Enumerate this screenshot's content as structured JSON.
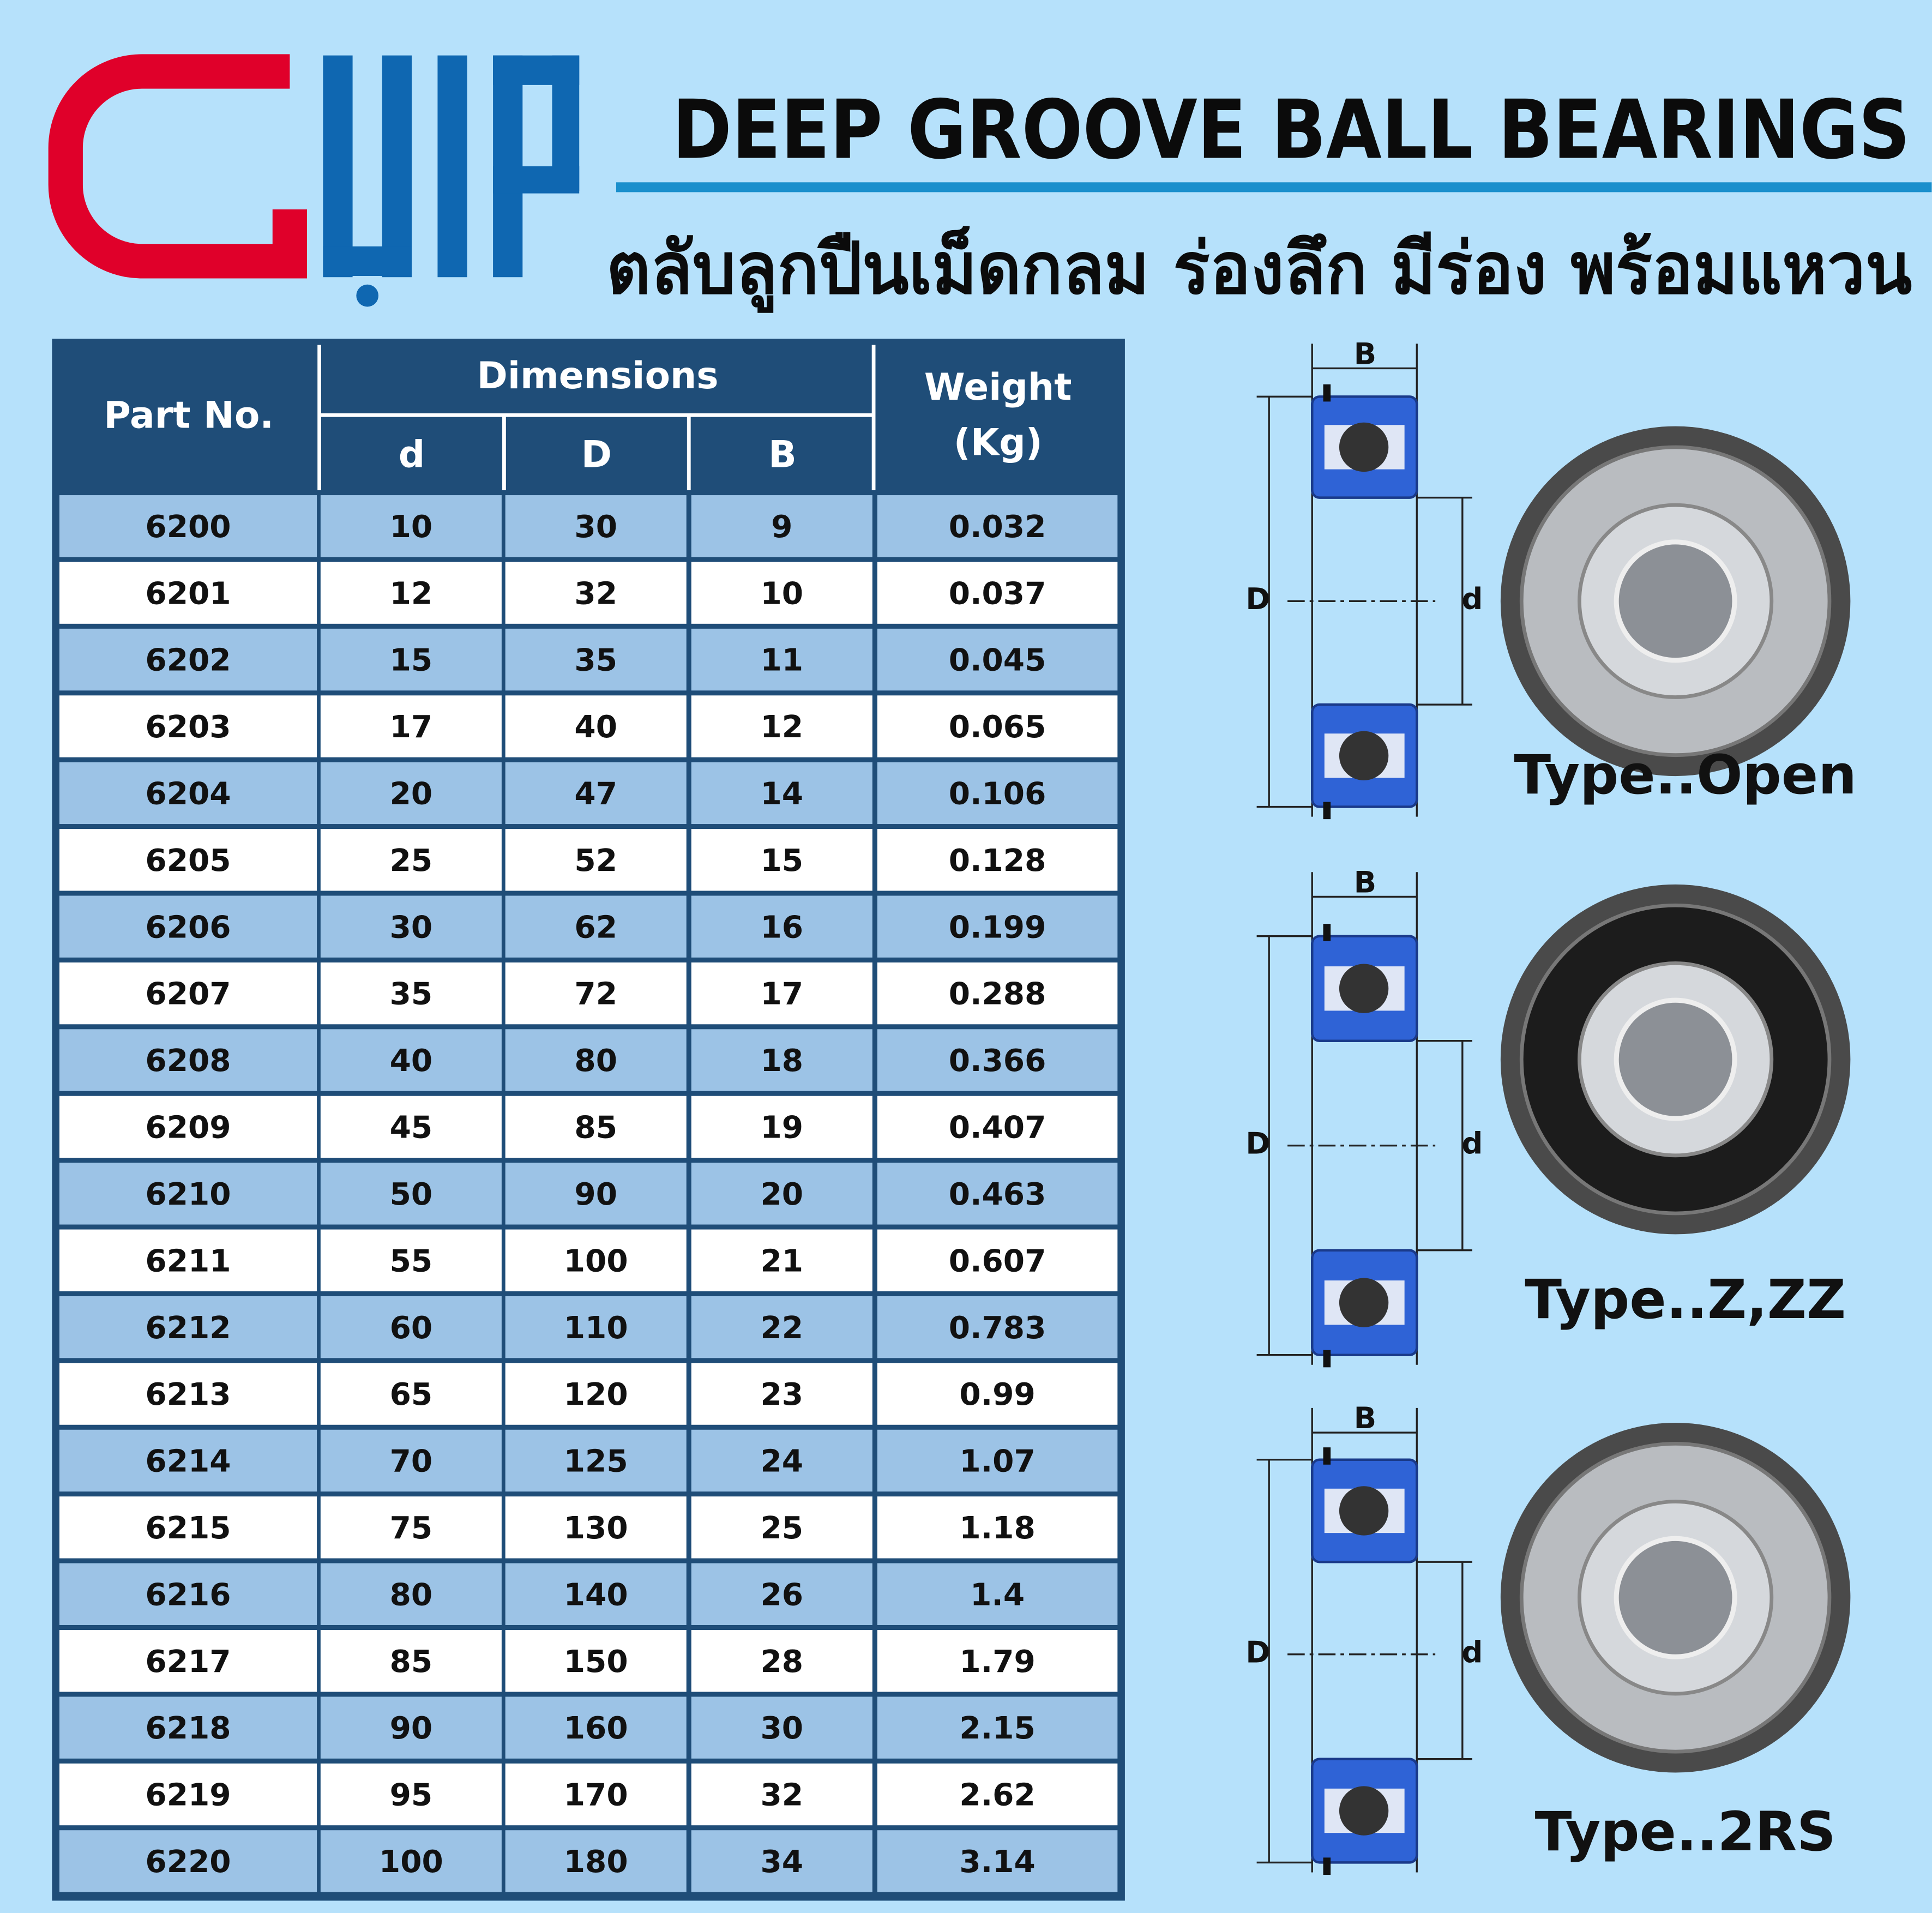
{
  "header": {
    "title": "DEEP GROOVE BALL BEARINGS",
    "subtitle": "ตลับลูกปืนเม็ดกลม ร่องลึก มีร่อง พร้อมแหวน"
  },
  "table": {
    "headers": {
      "part": "Part No.",
      "dimensions": "Dimensions",
      "d": "d",
      "D": "D",
      "B": "B",
      "weight": "Weight\n(Kg)"
    },
    "rows": [
      [
        "6200",
        10,
        30,
        9,
        0.032
      ],
      [
        "6201",
        12,
        32,
        10,
        0.037
      ],
      [
        "6202",
        15,
        35,
        11,
        0.045
      ],
      [
        "6203",
        17,
        40,
        12,
        0.065
      ],
      [
        "6204",
        20,
        47,
        14,
        0.106
      ],
      [
        "6205",
        25,
        52,
        15,
        0.128
      ],
      [
        "6206",
        30,
        62,
        16,
        0.199
      ],
      [
        "6207",
        35,
        72,
        17,
        0.288
      ],
      [
        "6208",
        40,
        80,
        18,
        0.366
      ],
      [
        "6209",
        45,
        85,
        19,
        0.407
      ],
      [
        "6210",
        50,
        90,
        20,
        0.463
      ],
      [
        "6211",
        55,
        100,
        21,
        0.607
      ],
      [
        "6212",
        60,
        110,
        22,
        0.783
      ],
      [
        "6213",
        65,
        120,
        23,
        0.99
      ],
      [
        "6214",
        70,
        125,
        24,
        1.07
      ],
      [
        "6215",
        75,
        130,
        25,
        1.18
      ],
      [
        "6216",
        80,
        140,
        26,
        1.4
      ],
      [
        "6217",
        85,
        150,
        28,
        1.79
      ],
      [
        "6218",
        90,
        160,
        30,
        2.15
      ],
      [
        "6219",
        95,
        170,
        32,
        2.62
      ],
      [
        "6220",
        100,
        180,
        34,
        3.14
      ]
    ]
  },
  "diagrams": [
    {
      "B": "B",
      "D": "D",
      "d": "d",
      "type": "Type..Open"
    },
    {
      "B": "B",
      "D": "D",
      "d": "d",
      "type": "Type..Z,ZZ"
    },
    {
      "B": "B",
      "D": "D",
      "d": "d",
      "type": "Type..2RS"
    }
  ]
}
